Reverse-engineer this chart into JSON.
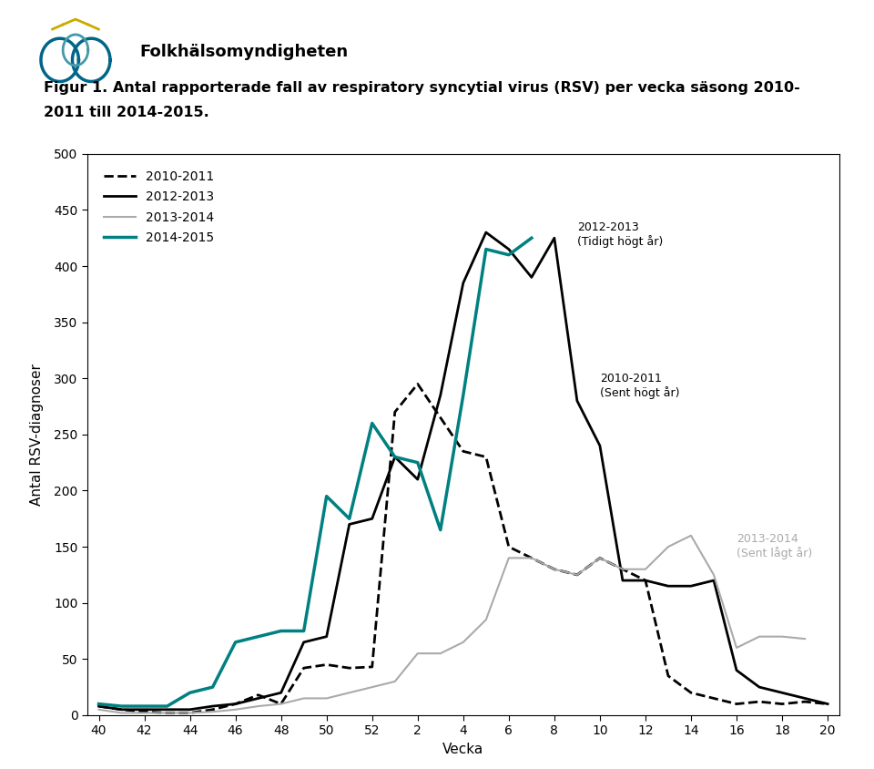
{
  "x_ticks": [
    40,
    42,
    44,
    46,
    48,
    50,
    52,
    2,
    4,
    6,
    8,
    10,
    12,
    14,
    16,
    18,
    20
  ],
  "x_positions": [
    0,
    1,
    2,
    3,
    4,
    5,
    6,
    7,
    8,
    9,
    10,
    11,
    12,
    13,
    14,
    15,
    16,
    17,
    18,
    19,
    20,
    21,
    22,
    23,
    24,
    25,
    26,
    27,
    28,
    29,
    30,
    31,
    32
  ],
  "x_tick_positions": [
    0,
    2,
    4,
    6,
    8,
    10,
    12,
    14,
    16,
    18,
    20,
    22,
    24,
    26,
    28,
    30,
    32
  ],
  "series_2010_2011": [
    8,
    5,
    3,
    2,
    2,
    5,
    10,
    18,
    10,
    42,
    45,
    42,
    43,
    270,
    295,
    265,
    235,
    230,
    150,
    140,
    130,
    125,
    140,
    130,
    120,
    35,
    20,
    15,
    10,
    12,
    10,
    12,
    10
  ],
  "series_2012_2013": [
    8,
    5,
    5,
    5,
    5,
    8,
    10,
    15,
    20,
    65,
    70,
    170,
    175,
    230,
    210,
    285,
    385,
    430,
    415,
    390,
    425,
    280,
    240,
    120,
    120,
    115,
    115,
    120,
    40,
    25,
    20,
    15,
    10
  ],
  "series_2013_2014": [
    5,
    2,
    2,
    2,
    2,
    3,
    5,
    8,
    10,
    15,
    15,
    20,
    25,
    30,
    55,
    55,
    65,
    85,
    140,
    140,
    130,
    125,
    140,
    130,
    130,
    150,
    160,
    125,
    60,
    70,
    70,
    68,
    null
  ],
  "series_2014_2015": [
    10,
    8,
    8,
    8,
    20,
    25,
    65,
    70,
    75,
    75,
    195,
    175,
    260,
    230,
    225,
    165,
    285,
    415,
    410,
    425,
    null,
    null,
    null,
    null,
    null,
    null,
    null,
    null,
    null,
    null,
    null,
    null,
    null
  ],
  "color_2010_2011": "#000000",
  "color_2012_2013": "#000000",
  "color_2013_2014": "#aaaaaa",
  "color_2014_2015": "#008080",
  "ylabel": "Antal RSV-diagnoser",
  "xlabel": "Vecka",
  "ylim": [
    0,
    500
  ],
  "yticks": [
    0,
    50,
    100,
    150,
    200,
    250,
    300,
    350,
    400,
    450,
    500
  ],
  "figure_title_line1": "Figur 1. Antal rapporterade fall av respiratory syncytial virus (RSV) per vecka säsong 2010-",
  "figure_title_line2": "2011 till 2014-2015.",
  "background_color": "#ffffff",
  "ann_2012_label": "2012-2013\n(Tidigt högt år)",
  "ann_2012_x": 21,
  "ann_2012_y": 440,
  "ann_2010_label": "2010-2011\n(Sent högt år)",
  "ann_2010_x": 22,
  "ann_2010_y": 305,
  "ann_2013_label": "2013-2014\n(Sent lågt år)",
  "ann_2013_x": 28,
  "ann_2013_y": 162
}
